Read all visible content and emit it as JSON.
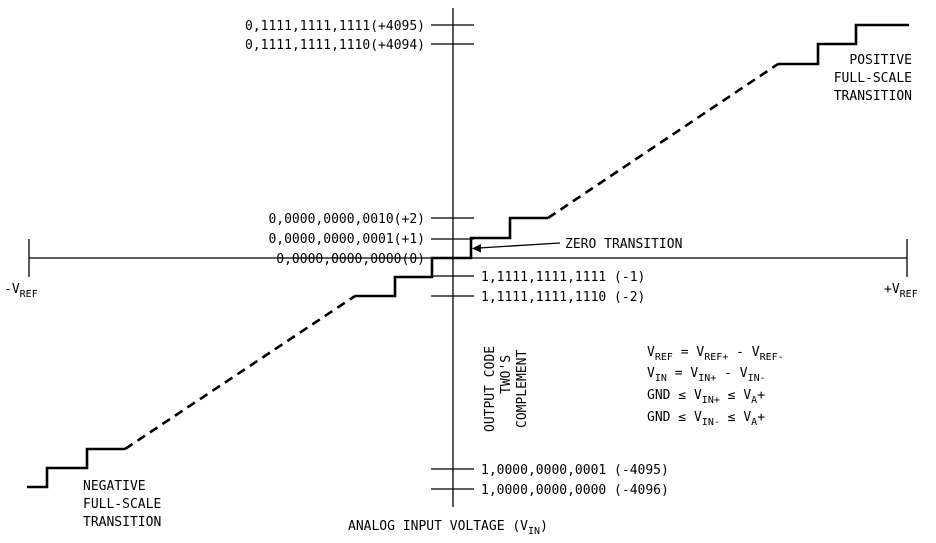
{
  "axis": {
    "neg_vref": {
      "main": "-V",
      "sub": "REF"
    },
    "pos_vref": {
      "main": "+V",
      "sub": "REF"
    },
    "x_label": {
      "main": "ANALOG INPUT VOLTAGE (V",
      "sub": "IN",
      "tail": ")"
    },
    "y_label": [
      "OUTPUT CODE",
      "TWO'S",
      "COMPLEMENT"
    ]
  },
  "codes": {
    "c4095": "0,1111,1111,1111(+4095)",
    "c4094": "0,1111,1111,1110(+4094)",
    "c2": "0,0000,0000,0010(+2)",
    "c1": "0,0000,0000,0001(+1)",
    "c0": "0,0000,0000,0000(0)",
    "cm1": "1,1111,1111,1111 (-1)",
    "cm2": "1,1111,1111,1110 (-2)",
    "cm4095": "1,0000,0000,0001 (-4095)",
    "cm4096": "1,0000,0000,0000 (-4096)"
  },
  "annotations": {
    "positive_fs": [
      "POSITIVE",
      "FULL-SCALE",
      "TRANSITION"
    ],
    "negative_fs": [
      "NEGATIVE",
      "FULL-SCALE",
      "TRANSITION"
    ],
    "zero_transition": "ZERO TRANSITION"
  },
  "equations": {
    "eq1": {
      "a": "V",
      "a_sub": "REF",
      "b": " = V",
      "b_sub": "REF+",
      "c": " - V",
      "c_sub": "REF-"
    },
    "eq2": {
      "a": "V",
      "a_sub": "IN",
      "b": " = V",
      "b_sub": "IN+",
      "c": " - V",
      "c_sub": "IN-"
    },
    "eq3": {
      "a": "GND ≤ V",
      "a_sub": "IN+",
      "b": " ≤ V",
      "b_sub": "A",
      "c": "+"
    },
    "eq4": {
      "a": "GND ≤ V",
      "a_sub": "IN-",
      "b": " ≤ V",
      "b_sub": "A",
      "c": "+"
    }
  }
}
